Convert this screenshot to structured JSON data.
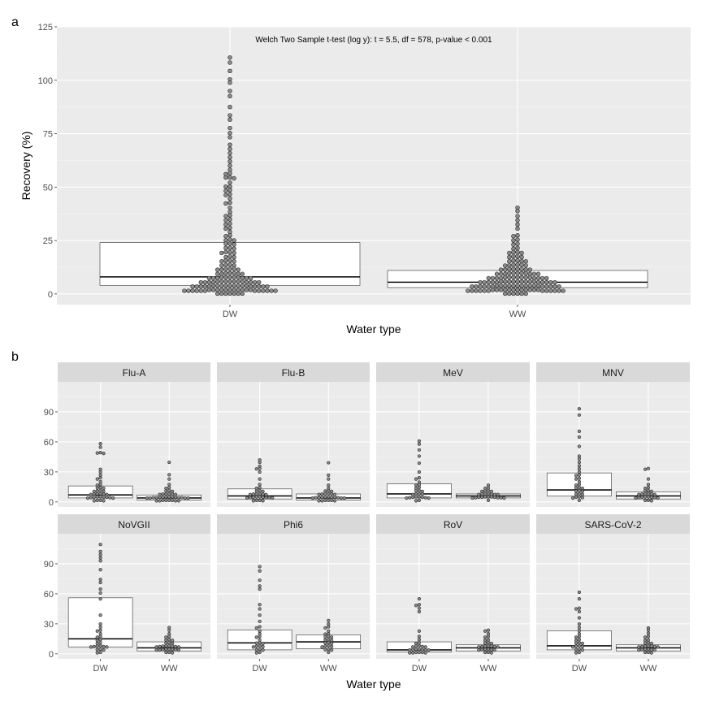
{
  "panel_a_tag": "a",
  "panel_b_tag": "b",
  "chart_data": [
    {
      "type": "boxplot",
      "panel": "a",
      "annotation": "Welch Two Sample t-test (log y): t = 5.5, df = 578, p-value < 0.001",
      "xlabel": "Water type",
      "ylabel": "Recovery (%)",
      "categories": [
        "DW",
        "WW"
      ],
      "ylim": [
        -5,
        125
      ],
      "yticks": [
        0,
        25,
        50,
        75,
        100,
        125
      ],
      "boxes": [
        {
          "category": "DW",
          "q1": 4,
          "median": 8,
          "q3": 24
        },
        {
          "category": "WW",
          "q1": 3,
          "median": 5.5,
          "q3": 11
        }
      ],
      "points": {
        "DW": [
          111,
          108,
          104,
          100,
          99,
          95,
          92,
          88,
          84,
          82,
          78,
          75,
          73,
          70,
          68,
          66,
          64,
          62,
          60,
          58,
          57,
          56,
          55,
          55,
          54,
          52,
          50,
          50,
          49,
          48,
          47,
          46,
          45,
          43,
          42,
          40,
          38,
          37,
          36,
          35,
          34,
          33,
          32,
          31,
          30,
          29,
          28,
          27,
          26,
          25,
          25,
          24,
          24,
          23,
          22,
          22,
          21,
          20,
          20,
          19,
          19,
          18,
          17,
          17,
          16,
          16,
          15,
          15,
          14,
          14,
          13,
          13,
          12,
          12,
          12,
          11,
          11,
          11,
          10,
          10,
          10,
          9,
          9,
          9,
          9,
          8,
          8,
          8,
          8,
          8,
          7,
          7,
          7,
          7,
          7,
          7,
          6,
          6,
          6,
          6,
          6,
          6,
          6,
          5,
          5,
          5,
          5,
          5,
          5,
          5,
          5,
          4,
          4,
          4,
          4,
          4,
          4,
          4,
          4,
          4,
          3,
          3,
          3,
          3,
          3,
          3,
          3,
          3,
          3,
          3,
          2,
          2,
          2,
          2,
          2,
          2,
          2,
          2,
          2,
          2,
          2,
          1,
          1,
          1,
          1,
          1,
          1,
          1,
          1,
          1,
          1,
          1,
          1,
          0.5,
          0.5,
          0.5,
          0.5,
          0.5,
          0.5,
          0.5
        ],
        "WW": [
          40,
          39,
          36,
          34,
          32,
          30,
          28,
          27,
          26,
          25,
          24,
          23,
          22,
          21,
          20,
          20,
          19,
          19,
          18,
          18,
          17,
          17,
          16,
          16,
          15,
          15,
          15,
          14,
          14,
          14,
          13,
          13,
          13,
          12,
          12,
          12,
          12,
          11,
          11,
          11,
          11,
          10,
          10,
          10,
          10,
          10,
          9,
          9,
          9,
          9,
          9,
          9,
          8,
          8,
          8,
          8,
          8,
          8,
          8,
          7,
          7,
          7,
          7,
          7,
          7,
          7,
          7,
          6,
          6,
          6,
          6,
          6,
          6,
          6,
          6,
          6,
          5,
          5,
          5,
          5,
          5,
          5,
          5,
          5,
          5,
          5,
          4,
          4,
          4,
          4,
          4,
          4,
          4,
          4,
          4,
          4,
          4,
          3,
          3,
          3,
          3,
          3,
          3,
          3,
          3,
          3,
          3,
          3,
          2,
          2,
          2,
          2,
          2,
          2,
          2,
          2,
          2,
          2,
          2,
          2,
          1,
          1,
          1,
          1,
          1,
          1,
          1,
          1,
          1,
          1,
          1,
          1,
          0.5,
          0.5,
          0.5,
          0.5,
          0.5,
          0.5
        ]
      }
    },
    {
      "type": "boxplot",
      "panel": "b",
      "facetted": true,
      "xlabel": "Water type",
      "ylabel": "",
      "categories": [
        "DW",
        "WW"
      ],
      "ylim": [
        -5,
        120
      ],
      "yticks": [
        0,
        30,
        60,
        90
      ],
      "facets": [
        {
          "name": "Flu-A",
          "boxes": {
            "DW": {
              "q1": 4,
              "median": 7,
              "q3": 16
            },
            "WW": {
              "q1": 2,
              "median": 4,
              "q3": 7
            }
          },
          "points": {
            "DW": [
              58,
              54,
              50,
              49,
              48,
              32,
              30,
              27,
              25,
              22,
              20,
              18,
              16,
              15,
              14,
              13,
              12,
              11,
              10,
              10,
              9,
              9,
              8,
              8,
              7,
              7,
              6,
              6,
              5,
              5,
              5,
              4,
              4,
              3,
              3,
              2,
              2,
              1,
              1
            ],
            "WW": [
              40,
              28,
              22,
              18,
              15,
              13,
              12,
              11,
              10,
              9,
              9,
              8,
              8,
              7,
              7,
              6,
              6,
              6,
              5,
              5,
              5,
              4,
              4,
              4,
              4,
              3,
              3,
              3,
              3,
              2,
              2,
              2,
              2,
              1,
              1,
              1,
              1
            ]
          }
        },
        {
          "name": "Flu-B",
          "boxes": {
            "DW": {
              "q1": 3,
              "median": 6,
              "q3": 13
            },
            "WW": {
              "q1": 2,
              "median": 4,
              "q3": 8
            }
          },
          "points": {
            "DW": [
              41,
              40,
              35,
              34,
              33,
              30,
              22,
              18,
              15,
              13,
              12,
              11,
              10,
              9,
              9,
              8,
              8,
              7,
              7,
              6,
              6,
              5,
              5,
              4,
              4,
              4,
              3,
              3,
              2,
              2,
              1,
              1
            ],
            "WW": [
              39,
              27,
              22,
              16,
              13,
              12,
              11,
              10,
              9,
              9,
              8,
              8,
              7,
              7,
              6,
              6,
              5,
              5,
              5,
              4,
              4,
              4,
              3,
              3,
              3,
              2,
              2,
              2,
              1,
              1,
              1
            ]
          }
        },
        {
          "name": "MeV",
          "boxes": {
            "DW": {
              "q1": 4,
              "median": 8,
              "q3": 18
            },
            "WW": {
              "q1": 4,
              "median": 6,
              "q3": 8
            }
          },
          "points": {
            "DW": [
              60,
              57,
              52,
              46,
              38,
              30,
              25,
              22,
              19,
              17,
              16,
              15,
              13,
              12,
              11,
              10,
              9,
              8,
              8,
              7,
              6,
              6,
              5,
              5,
              4,
              4,
              3,
              3,
              2,
              1
            ],
            "WW": [
              16,
              14,
              13,
              12,
              11,
              10,
              10,
              9,
              9,
              8,
              8,
              7,
              7,
              7,
              6,
              6,
              6,
              5,
              5,
              5,
              4,
              4,
              4,
              3,
              3,
              2
            ]
          }
        },
        {
          "name": "MNV",
          "boxes": {
            "DW": {
              "q1": 6,
              "median": 12,
              "q3": 29
            },
            "WW": {
              "q1": 3,
              "median": 6,
              "q3": 10
            }
          },
          "points": {
            "DW": [
              93,
              87,
              70,
              65,
              56,
              46,
              44,
              40,
              36,
              33,
              30,
              28,
              26,
              24,
              22,
              20,
              18,
              16,
              15,
              14,
              13,
              12,
              11,
              10,
              9,
              8,
              7,
              6,
              5,
              4,
              3,
              2
            ],
            "WW": [
              34,
              32,
              22,
              18,
              15,
              13,
              12,
              11,
              10,
              9,
              9,
              8,
              8,
              7,
              7,
              6,
              6,
              5,
              5,
              4,
              4,
              3,
              3,
              2,
              2,
              1
            ]
          }
        },
        {
          "name": "NoVGII",
          "boxes": {
            "DW": {
              "q1": 7,
              "median": 15,
              "q3": 56
            },
            "WW": {
              "q1": 3,
              "median": 6,
              "q3": 12
            }
          },
          "points": {
            "DW": [
              110,
              102,
              99,
              96,
              93,
              85,
              75,
              72,
              65,
              60,
              55,
              38,
              30,
              27,
              24,
              22,
              20,
              18,
              16,
              15,
              13,
              12,
              10,
              9,
              8,
              7,
              7,
              6,
              6,
              5,
              4,
              3,
              2,
              1
            ],
            "WW": [
              26,
              24,
              20,
              18,
              16,
              15,
              14,
              13,
              12,
              11,
              10,
              9,
              9,
              8,
              8,
              7,
              7,
              6,
              6,
              5,
              5,
              5,
              4,
              4,
              3,
              3,
              3,
              2,
              2,
              1
            ]
          }
        },
        {
          "name": "Phi6",
          "boxes": {
            "DW": {
              "q1": 4,
              "median": 11,
              "q3": 24
            },
            "WW": {
              "q1": 5,
              "median": 12,
              "q3": 19
            }
          },
          "points": {
            "DW": [
              88,
              82,
              73,
              68,
              65,
              50,
              44,
              38,
              32,
              28,
              25,
              22,
              20,
              18,
              16,
              14,
              12,
              11,
              10,
              9,
              8,
              7,
              6,
              5,
              4,
              3,
              2,
              1
            ],
            "WW": [
              34,
              30,
              28,
              25,
              22,
              20,
              19,
              18,
              17,
              16,
              15,
              14,
              13,
              12,
              11,
              10,
              9,
              8,
              7,
              6,
              5,
              4,
              3,
              2
            ]
          }
        },
        {
          "name": "RoV",
          "boxes": {
            "DW": {
              "q1": 2,
              "median": 4,
              "q3": 12
            },
            "WW": {
              "q1": 3,
              "median": 6,
              "q3": 9
            }
          },
          "points": {
            "DW": [
              55,
              50,
              48,
              46,
              42,
              22,
              18,
              15,
              12,
              10,
              9,
              8,
              7,
              6,
              6,
              5,
              5,
              4,
              4,
              3,
              3,
              3,
              2,
              2,
              2,
              1,
              1,
              1
            ],
            "WW": [
              24,
              22,
              20,
              18,
              16,
              14,
              13,
              12,
              11,
              10,
              9,
              8,
              8,
              7,
              7,
              6,
              6,
              5,
              5,
              4,
              4,
              3,
              3,
              2,
              2,
              1
            ]
          }
        },
        {
          "name": "SARS-CoV-2",
          "boxes": {
            "DW": {
              "q1": 4,
              "median": 8,
              "q3": 23
            },
            "WW": {
              "q1": 3,
              "median": 6,
              "q3": 9
            }
          },
          "points": {
            "DW": [
              62,
              55,
              46,
              44,
              42,
              36,
              30,
              26,
              23,
              20,
              18,
              16,
              15,
              13,
              12,
              11,
              10,
              9,
              8,
              7,
              6,
              5,
              4,
              3,
              2,
              1
            ],
            "WW": [
              25,
              24,
              21,
              18,
              16,
              14,
              13,
              12,
              11,
              10,
              9,
              8,
              8,
              7,
              7,
              6,
              6,
              5,
              5,
              4,
              4,
              3,
              3,
              2,
              2,
              1
            ]
          }
        }
      ]
    }
  ]
}
